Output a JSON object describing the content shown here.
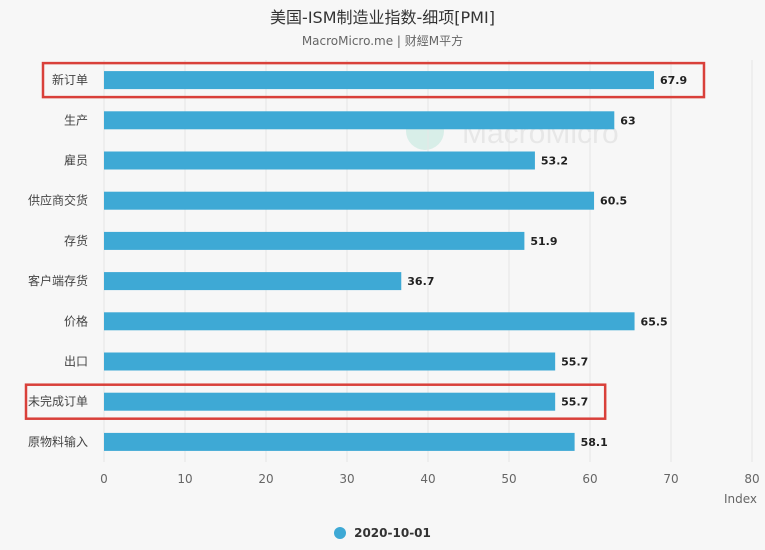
{
  "title": "美国-ISM制造业指数-细项[PMI]",
  "subtitle": "MacroMicro.me | 财經M平方",
  "watermark": "MacroMicro",
  "colors": {
    "bar": "#3ea9d5",
    "highlight_box": "#d9403a",
    "grid": "#e6e6e6",
    "axis_text": "#666666",
    "label_text": "#222222"
  },
  "chart_data": {
    "type": "bar",
    "orientation": "horizontal",
    "categories": [
      "新订单",
      "生产",
      "雇员",
      "供应商交货",
      "存货",
      "客户端存货",
      "价格",
      "出口",
      "未完成订单",
      "原物料输入"
    ],
    "series": [
      {
        "name": "2020-10-01",
        "values": [
          67.9,
          63,
          53.2,
          60.5,
          51.9,
          36.7,
          65.5,
          55.7,
          55.7,
          58.1
        ]
      }
    ],
    "xlim": [
      0,
      80
    ],
    "xticks": [
      0,
      10,
      20,
      30,
      40,
      50,
      60,
      70,
      80
    ],
    "xlabel": "Index",
    "grid": "vertical",
    "legend": "bottom-center",
    "highlighted_categories": [
      "新订单",
      "未完成订单"
    ]
  }
}
